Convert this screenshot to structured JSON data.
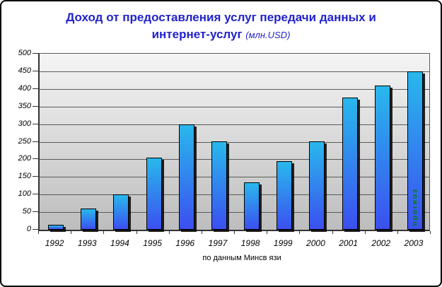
{
  "title": {
    "line1": "Доход от предоставления услуг передачи данных и",
    "line2": "интернет-услуг",
    "unit": "(млн.USD)"
  },
  "caption": "по данным Минсв язи",
  "chart_data": {
    "type": "bar",
    "title": "Доход от предоставления услуг передачи данных и интернет-услуг (млн.USD)",
    "categories": [
      "1992",
      "1993",
      "1994",
      "1995",
      "1996",
      "1997",
      "1998",
      "1999",
      "2000",
      "2001",
      "2002",
      "2003"
    ],
    "values": [
      15,
      60,
      100,
      205,
      300,
      250,
      135,
      195,
      250,
      375,
      410,
      450
    ],
    "xlabel": "",
    "ylabel": "",
    "ylim": [
      0,
      500
    ],
    "yticks": [
      0,
      50,
      100,
      150,
      200,
      250,
      300,
      350,
      400,
      450,
      500
    ],
    "grid": true,
    "legend": false,
    "annotation": {
      "year": "2003",
      "text": "прогноз",
      "color": "#008000"
    }
  },
  "colors": {
    "title_blue": "#2222cc",
    "bar_gradient_top": "#29b8ec",
    "bar_gradient_bottom": "#3b4ff0",
    "bar_shadow": "#0a0a0a",
    "plot_bg_top": "#f5f5f5",
    "plot_bg_bottom": "#bdbdbd",
    "gridline": "#5a5a5a",
    "annotation_green": "#008000"
  }
}
